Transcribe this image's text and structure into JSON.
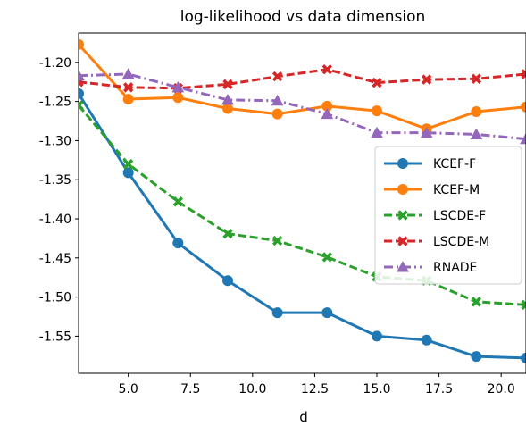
{
  "chart_data": {
    "type": "line",
    "title": "log-likelihood vs data dimension",
    "xlabel": "d",
    "ylabel": "",
    "xlim": [
      3,
      21
    ],
    "ylim": [
      -1.5975,
      -1.1625
    ],
    "xticks": [
      5.0,
      7.5,
      10.0,
      12.5,
      15.0,
      17.5,
      20.0
    ],
    "xtick_labels": [
      "5.0",
      "7.5",
      "10.0",
      "12.5",
      "15.0",
      "17.5",
      "20.0"
    ],
    "yticks": [
      -1.2,
      -1.25,
      -1.3,
      -1.35,
      -1.4,
      -1.45,
      -1.5,
      -1.55
    ],
    "ytick_labels": [
      "-1.20",
      "-1.25",
      "-1.30",
      "-1.35",
      "-1.40",
      "-1.45",
      "-1.50",
      "-1.55"
    ],
    "grid": false,
    "legend_position": "center-right",
    "x": [
      3,
      5,
      7,
      9,
      11,
      13,
      15,
      17,
      19,
      21
    ],
    "series": [
      {
        "name": "KCEF-F",
        "color": "#1f77b4",
        "dash": "solid",
        "marker": "circle",
        "values": [
          -1.24,
          -1.341,
          -1.431,
          -1.479,
          -1.52,
          -1.52,
          -1.55,
          -1.555,
          -1.576,
          -1.578
        ]
      },
      {
        "name": "KCEF-M",
        "color": "#ff7f0e",
        "dash": "solid",
        "marker": "circle",
        "values": [
          -1.177,
          -1.247,
          -1.245,
          -1.259,
          -1.266,
          -1.256,
          -1.262,
          -1.285,
          -1.263,
          -1.257
        ]
      },
      {
        "name": "LSCDE-F",
        "color": "#2ca02c",
        "dash": "dashed",
        "marker": "x",
        "values": [
          -1.255,
          -1.33,
          -1.378,
          -1.419,
          -1.428,
          -1.449,
          -1.474,
          -1.479,
          -1.506,
          -1.51
        ]
      },
      {
        "name": "LSCDE-M",
        "color": "#d62728",
        "dash": "dashed",
        "marker": "x",
        "values": [
          -1.225,
          -1.232,
          -1.233,
          -1.228,
          -1.218,
          -1.209,
          -1.226,
          -1.222,
          -1.221,
          -1.215
        ]
      },
      {
        "name": "RNADE",
        "color": "#9467bd",
        "dash": "dashdot",
        "marker": "triangle",
        "values": [
          -1.217,
          -1.215,
          -1.232,
          -1.248,
          -1.249,
          -1.266,
          -1.29,
          -1.29,
          -1.292,
          -1.298
        ]
      }
    ]
  }
}
